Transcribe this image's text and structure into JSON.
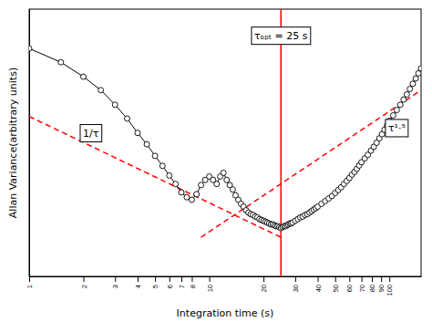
{
  "chart_data": {
    "type": "line",
    "log": true,
    "grid": false,
    "tick_labels": "x",
    "xlabel": "Integration time (s)",
    "ylabel": "Allan Variance(arbitrary units)",
    "xlim": [
      1.0,
      150.0
    ],
    "ylim": [
      0.04,
      1.5
    ],
    "xticks": [
      1,
      2,
      3,
      4,
      5,
      6,
      7,
      8,
      10,
      20,
      30,
      40,
      50,
      60,
      70,
      80,
      90,
      100
    ],
    "series": [
      {
        "color": "#000000",
        "marker": "circle",
        "line_style": "solid",
        "x": [
          1.0,
          1.5,
          2.0,
          2.5,
          3.0,
          3.5,
          4.0,
          4.5,
          5.0,
          5.5,
          6.0,
          6.5,
          7.0,
          7.5,
          8.0,
          8.5,
          9.0,
          9.5,
          10.0,
          10.5,
          11.0,
          11.5,
          12.0,
          12.5,
          13.0,
          13.5,
          14.0,
          14.5,
          15.0,
          15.5,
          16.0,
          16.5,
          17.0,
          17.5,
          18.0,
          18.5,
          19.0,
          19.5,
          20.0,
          20.5,
          21.0,
          21.5,
          22.0,
          22.5,
          23.0,
          23.5,
          24.0,
          24.5,
          25.0,
          25.5,
          26.0,
          26.5,
          27.0,
          27.5,
          28.0,
          28.5,
          29.0,
          30.0,
          31.0,
          32.0,
          33.0,
          34.0,
          35.0,
          36.0,
          37.0,
          38.0,
          39.0,
          40.0,
          42.0,
          44.0,
          46.0,
          48.0,
          50.0,
          52.0,
          54.0,
          56.0,
          58.0,
          60.0,
          62.0,
          64.0,
          66.0,
          68.0,
          70.0,
          73.0,
          76.0,
          79.0,
          82.0,
          85.0,
          88.0,
          91.0,
          94.0,
          97.0,
          100.0,
          105.0,
          110.0,
          115.0,
          120.0,
          125.0,
          130.0,
          135.0,
          140.0,
          145.0,
          150.0
        ],
        "values": [
          0.88,
          0.73,
          0.6,
          0.5,
          0.41,
          0.34,
          0.28,
          0.24,
          0.205,
          0.179,
          0.157,
          0.14,
          0.125,
          0.117,
          0.113,
          0.122,
          0.138,
          0.148,
          0.155,
          0.148,
          0.14,
          0.155,
          0.163,
          0.148,
          0.138,
          0.13,
          0.12,
          0.113,
          0.107,
          0.103,
          0.098,
          0.095,
          0.093,
          0.092,
          0.09,
          0.089,
          0.087,
          0.086,
          0.085,
          0.084,
          0.083,
          0.082,
          0.081,
          0.081,
          0.08,
          0.079,
          0.079,
          0.078,
          0.077,
          0.078,
          0.079,
          0.079,
          0.08,
          0.081,
          0.082,
          0.082,
          0.083,
          0.085,
          0.087,
          0.089,
          0.09,
          0.092,
          0.093,
          0.095,
          0.097,
          0.099,
          0.101,
          0.103,
          0.107,
          0.111,
          0.115,
          0.119,
          0.124,
          0.129,
          0.134,
          0.14,
          0.146,
          0.152,
          0.159,
          0.165,
          0.172,
          0.18,
          0.188,
          0.198,
          0.208,
          0.22,
          0.232,
          0.245,
          0.26,
          0.275,
          0.292,
          0.31,
          0.33,
          0.355,
          0.382,
          0.41,
          0.44,
          0.472,
          0.508,
          0.545,
          0.585,
          0.628,
          0.672
        ]
      },
      {
        "color": "#ff0000",
        "line_style": "dashed",
        "x": [
          1.0,
          25.0
        ],
        "values": [
          0.35,
          0.068
        ]
      },
      {
        "color": "#ff0000",
        "line_style": "dashed",
        "x": [
          9.0,
          150.0
        ],
        "values": [
          0.068,
          0.5
        ]
      }
    ],
    "vlines": [
      {
        "x": 25,
        "color": "#ff0000"
      }
    ],
    "annotations": [
      {
        "text": "τₒₚₜ = 25 s",
        "x": 25,
        "y": 1.05
      },
      {
        "text": "1/τ",
        "x": 2.2,
        "y": 0.28
      },
      {
        "text": "τ¹·⁵",
        "x": 110,
        "y": 0.3
      }
    ]
  }
}
